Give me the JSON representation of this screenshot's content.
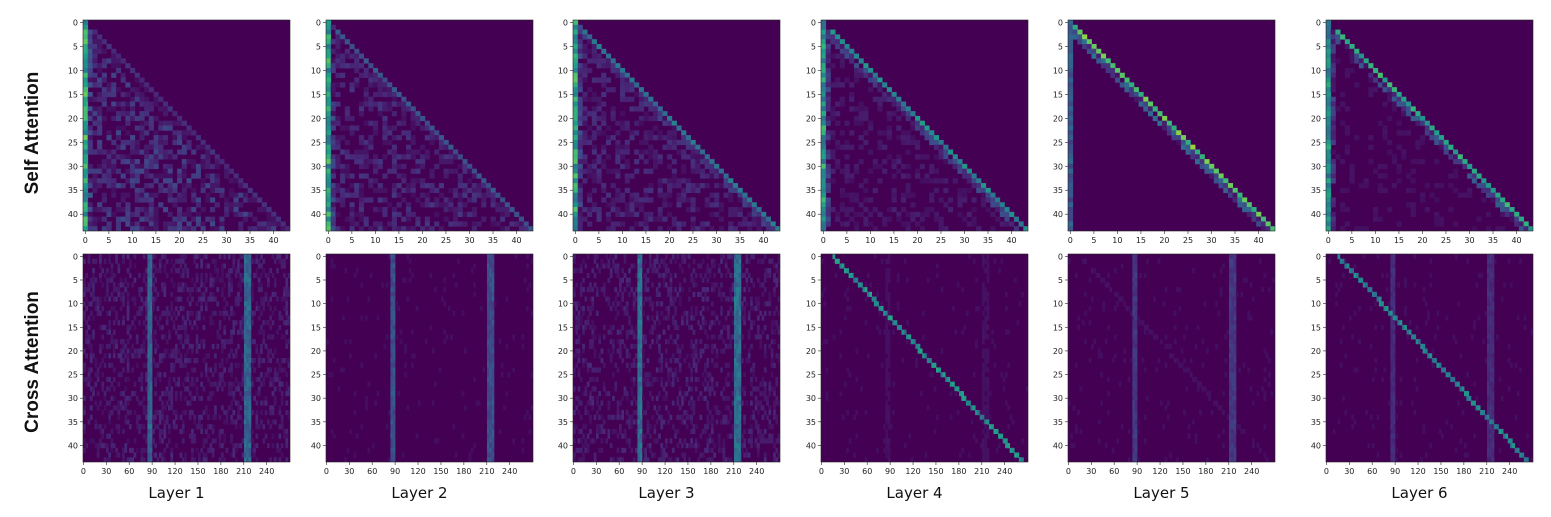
{
  "figure": {
    "row_labels": [
      "Self Attention",
      "Cross Attention"
    ],
    "column_labels": [
      "Layer 1",
      "Layer 2",
      "Layer 3",
      "Layer 4",
      "Layer 5",
      "Layer 6"
    ]
  },
  "colors": {
    "colormap": "viridis",
    "low": "#440154",
    "high": "#fde725"
  },
  "chart_data": [
    {
      "type": "heatmap",
      "group": "self_attention",
      "rows": 44,
      "cols": 44,
      "x_ticks": [
        "0",
        "5",
        "10",
        "15",
        "20",
        "25",
        "30",
        "35",
        "40"
      ],
      "y_ticks": [
        "0",
        "5",
        "10",
        "15",
        "20",
        "25",
        "30",
        "35",
        "40"
      ],
      "xlim": [
        0,
        43
      ],
      "ylim": [
        0,
        43
      ],
      "description_values": {
        "pattern": "lower-triangular; strong attention on first token (column 0) in all layers; diagonal sharpens from layer 1 to layer 6",
        "diagonal_strength_by_layer": [
          0.15,
          0.3,
          0.45,
          0.55,
          0.85,
          0.7
        ],
        "first_column_strength_by_layer": [
          0.8,
          0.75,
          0.75,
          0.7,
          0.35,
          0.65
        ],
        "diffuse_strength_by_layer": [
          0.22,
          0.16,
          0.14,
          0.09,
          0.02,
          0.05
        ]
      }
    },
    {
      "type": "heatmap",
      "group": "cross_attention",
      "rows": 44,
      "cols": 270,
      "x_ticks": [
        "0",
        "30",
        "60",
        "90",
        "120",
        "150",
        "180",
        "210",
        "240"
      ],
      "y_ticks": [
        "0",
        "5",
        "10",
        "15",
        "20",
        "25",
        "30",
        "35",
        "40"
      ],
      "xlim": [
        0,
        270
      ],
      "ylim": [
        0,
        43
      ],
      "description_values": {
        "pattern": "vertical stripes near x=85 and x=213 in early layers; monotonic alignment diagonal in layers 4 and 6",
        "vertical_stripe_x": [
          85,
          213
        ],
        "alignment_diagonal_by_layer": [
          0,
          0,
          0,
          0.6,
          0.05,
          0.55
        ],
        "stripe_strength_by_layer": [
          0.4,
          0.3,
          0.45,
          0.05,
          0.2,
          0.15
        ]
      }
    }
  ]
}
